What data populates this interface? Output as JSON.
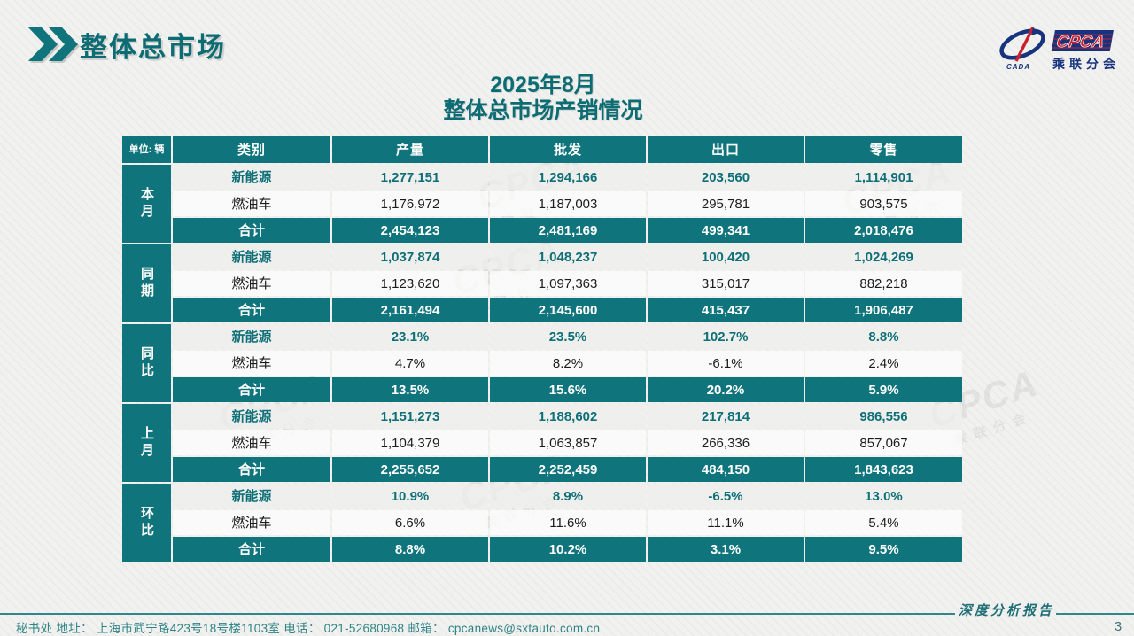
{
  "slide": {
    "section_title": "整体总市场",
    "title_line1": "2025年8月",
    "title_line2": "整体总市场产销情况",
    "logo": {
      "cada_text": "CADA",
      "cpca_text": "CPCA",
      "org_name": "乘联分会"
    },
    "footer": {
      "left_text": "秘书处   地址： 上海市武宁路423号18号楼1103室  电话： 021-52680968   邮箱： cpcanews@sxtauto.com.cn",
      "report_label": "深度分析报告",
      "page_number": "3"
    },
    "colors": {
      "teal": "#0F747C",
      "navy": "#17337E",
      "red": "#C8202F"
    }
  },
  "table": {
    "unit_label": "单位: 辆",
    "columns": [
      "类别",
      "产量",
      "批发",
      "出口",
      "零售"
    ],
    "groups": [
      {
        "label": "本月",
        "rows": [
          {
            "category": "新能源",
            "style": "nev",
            "values": [
              "1,277,151",
              "1,294,166",
              "203,560",
              "1,114,901"
            ]
          },
          {
            "category": "燃油车",
            "style": "fuel",
            "values": [
              "1,176,972",
              "1,187,003",
              "295,781",
              "903,575"
            ]
          },
          {
            "category": "合计",
            "style": "total",
            "values": [
              "2,454,123",
              "2,481,169",
              "499,341",
              "2,018,476"
            ]
          }
        ]
      },
      {
        "label": "同期",
        "rows": [
          {
            "category": "新能源",
            "style": "nev",
            "values": [
              "1,037,874",
              "1,048,237",
              "100,420",
              "1,024,269"
            ]
          },
          {
            "category": "燃油车",
            "style": "fuel",
            "values": [
              "1,123,620",
              "1,097,363",
              "315,017",
              "882,218"
            ]
          },
          {
            "category": "合计",
            "style": "total",
            "values": [
              "2,161,494",
              "2,145,600",
              "415,437",
              "1,906,487"
            ]
          }
        ]
      },
      {
        "label": "同比",
        "rows": [
          {
            "category": "新能源",
            "style": "nev",
            "values": [
              "23.1%",
              "23.5%",
              "102.7%",
              "8.8%"
            ]
          },
          {
            "category": "燃油车",
            "style": "fuel",
            "values": [
              "4.7%",
              "8.2%",
              "-6.1%",
              "2.4%"
            ]
          },
          {
            "category": "合计",
            "style": "total",
            "values": [
              "13.5%",
              "15.6%",
              "20.2%",
              "5.9%"
            ]
          }
        ]
      },
      {
        "label": "上月",
        "rows": [
          {
            "category": "新能源",
            "style": "nev",
            "values": [
              "1,151,273",
              "1,188,602",
              "217,814",
              "986,556"
            ]
          },
          {
            "category": "燃油车",
            "style": "fuel",
            "values": [
              "1,104,379",
              "1,063,857",
              "266,336",
              "857,067"
            ]
          },
          {
            "category": "合计",
            "style": "total",
            "values": [
              "2,255,652",
              "2,252,459",
              "484,150",
              "1,843,623"
            ]
          }
        ]
      },
      {
        "label": "环比",
        "rows": [
          {
            "category": "新能源",
            "style": "nev",
            "values": [
              "10.9%",
              "8.9%",
              "-6.5%",
              "13.0%"
            ]
          },
          {
            "category": "燃油车",
            "style": "fuel",
            "values": [
              "6.6%",
              "11.6%",
              "11.1%",
              "5.4%"
            ]
          },
          {
            "category": "合计",
            "style": "total",
            "values": [
              "8.8%",
              "10.2%",
              "3.1%",
              "9.5%"
            ]
          }
        ]
      }
    ]
  }
}
